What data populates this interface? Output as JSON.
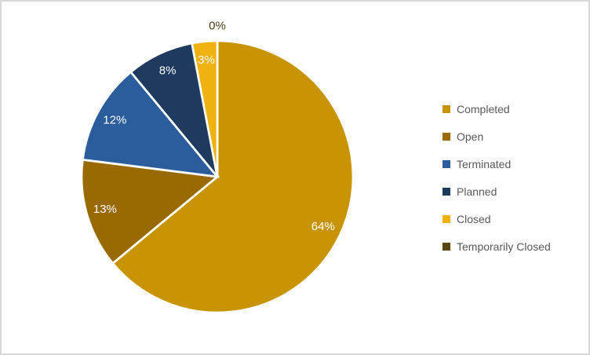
{
  "frame": {
    "background": "#FFFFFF",
    "border_color": "#D9D9D9"
  },
  "chart_data": {
    "type": "pie",
    "title": "",
    "legend_position": "right",
    "start_angle_deg": 0,
    "direction": "clockwise",
    "categories": [
      "Completed",
      "Open",
      "Terminated",
      "Planned",
      "Closed",
      "Temporarily Closed"
    ],
    "values": [
      64,
      13,
      12,
      8,
      3,
      0
    ],
    "slices": [
      {
        "name": "Completed",
        "value": 64,
        "display_label": "64%",
        "color": "#C99404"
      },
      {
        "name": "Open",
        "value": 13,
        "display_label": "13%",
        "color": "#996A02"
      },
      {
        "name": "Terminated",
        "value": 12,
        "display_label": "12%",
        "color": "#2B5D9D"
      },
      {
        "name": "Planned",
        "value": 8,
        "display_label": "8%",
        "color": "#1E3A5E"
      },
      {
        "name": "Closed",
        "value": 3,
        "display_label": "3%",
        "color": "#F0B211"
      },
      {
        "name": "Temporarily Closed",
        "value": 0,
        "display_label": "0%",
        "color": "#57470B"
      }
    ],
    "inside_label_color": "#FFFFFF",
    "outside_label_color": "#4B3A10",
    "legend_text_color": "#595959"
  }
}
